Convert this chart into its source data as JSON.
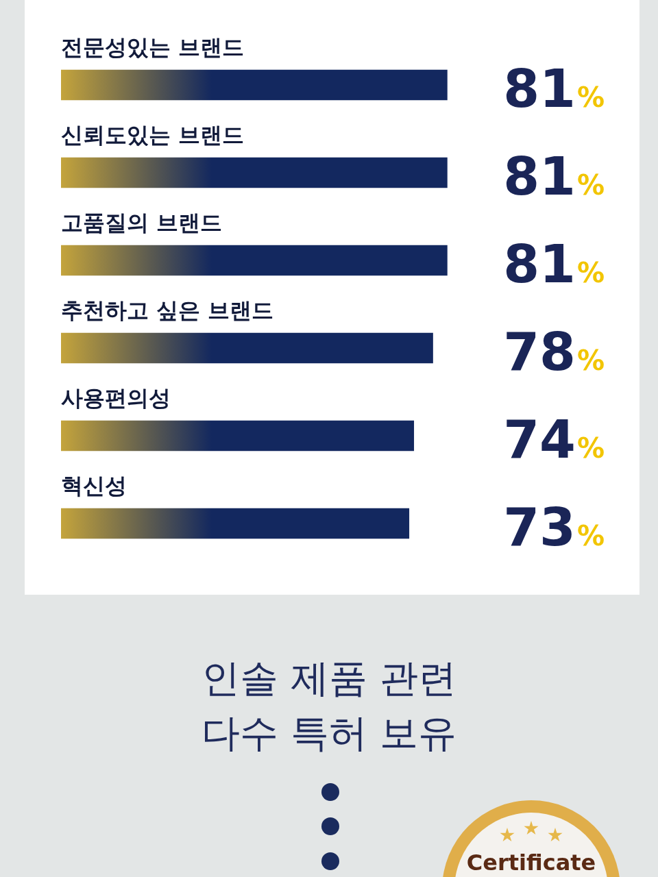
{
  "chart_data": {
    "type": "bar",
    "orientation": "horizontal",
    "categories": [
      "전문성있는 브랜드",
      "신뢰도있는 브랜드",
      "고품질의 브랜드",
      "추천하고 싶은 브랜드",
      "사용편의성",
      "혁신성"
    ],
    "values": [
      81,
      81,
      81,
      78,
      74,
      73
    ],
    "value_labels": [
      "81%",
      "81%",
      "81%",
      "78%",
      "74%",
      "73%"
    ],
    "color": "#13285f",
    "annotations": [
      "인솔 제품 관련",
      "다수 특허 보유",
      "Certificate"
    ]
  }
}
